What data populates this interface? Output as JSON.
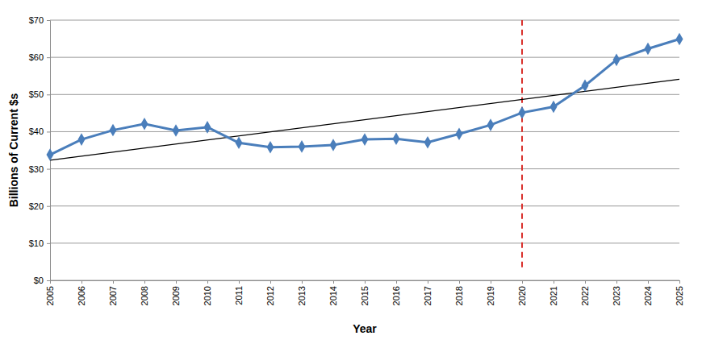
{
  "chart_data": {
    "type": "line",
    "x_label": "Year",
    "y_label": "Billions of Current $s",
    "x": [
      2005,
      2006,
      2007,
      2008,
      2009,
      2010,
      2011,
      2012,
      2013,
      2014,
      2015,
      2016,
      2017,
      2018,
      2019,
      2020,
      2021,
      2022,
      2023,
      2024,
      2025
    ],
    "series": [
      {
        "color": "#4a7ebb",
        "marker": "diamond",
        "line_style": "solid",
        "values": [
          33.8,
          37.9,
          40.4,
          42.1,
          40.3,
          41.2,
          37.0,
          35.8,
          36.0,
          36.4,
          37.9,
          38.1,
          37.1,
          39.4,
          41.8,
          45.1,
          46.7,
          52.4,
          59.3,
          62.3,
          64.9
        ]
      },
      {
        "color": "#000000",
        "marker": "none",
        "line_style": "solid",
        "x": [
          2005,
          2025
        ],
        "values": [
          32.3,
          54.1
        ]
      }
    ],
    "annotations": [
      {
        "type": "vline",
        "x": 2020,
        "y": [
          3.5,
          70
        ],
        "color": "#d9302c",
        "line_style": "dashed"
      }
    ],
    "xlim": [
      2005,
      2025
    ],
    "xticks": [
      2005,
      2006,
      2007,
      2008,
      2009,
      2010,
      2011,
      2012,
      2013,
      2014,
      2015,
      2016,
      2017,
      2018,
      2019,
      2020,
      2021,
      2022,
      2023,
      2024,
      2025
    ],
    "ylim": [
      0,
      70
    ],
    "yticks": [
      {
        "value": 0,
        "label": "$0"
      },
      {
        "value": 10,
        "label": "$10"
      },
      {
        "value": 20,
        "label": "$20"
      },
      {
        "value": 30,
        "label": "$30"
      },
      {
        "value": 40,
        "label": "$40"
      },
      {
        "value": 50,
        "label": "$50"
      },
      {
        "value": 60,
        "label": "$60"
      },
      {
        "value": 70,
        "label": "$70"
      }
    ],
    "grid": true
  }
}
